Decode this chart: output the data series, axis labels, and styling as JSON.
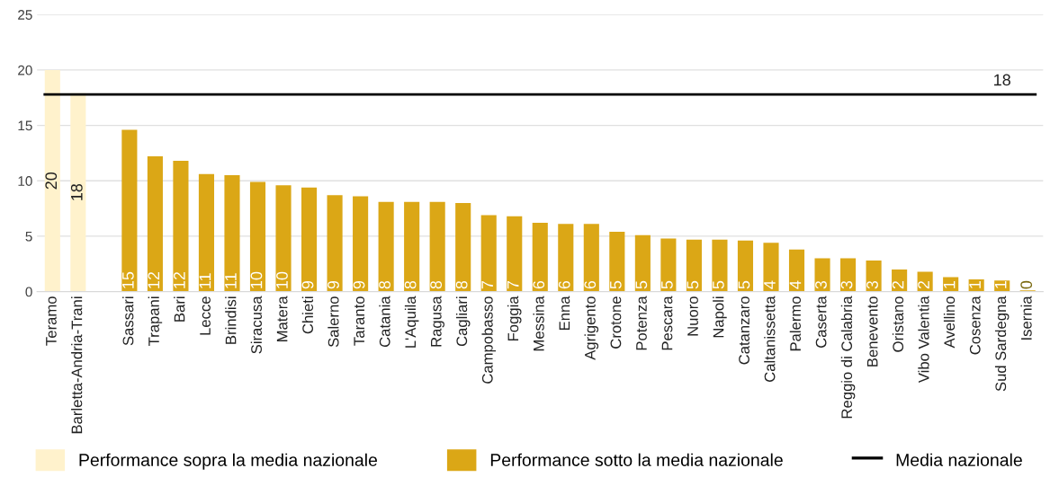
{
  "chart_data": {
    "type": "bar",
    "categories": [
      "Teramo",
      "Barletta-Andria-Trani",
      null,
      "Sassari",
      "Trapani",
      "Bari",
      "Lecce",
      "Brindisi",
      "Siracusa",
      "Matera",
      "Chieti",
      "Salerno",
      "Taranto",
      "Catania",
      "L'Aquila",
      "Ragusa",
      "Cagliari",
      "Campobasso",
      "Foggia",
      "Messina",
      "Enna",
      "Agrigento",
      "Crotone",
      "Potenza",
      "Pescara",
      "Nuoro",
      "Napoli",
      "Catanzaro",
      "Caltanissetta",
      "Palermo",
      "Caserta",
      "Reggio di Calabria",
      "Benevento",
      "Oristano",
      "Vibo Valentia",
      "Avellino",
      "Cosenza",
      "Sud Sardegna",
      "Isernia"
    ],
    "series": [
      {
        "name": "Performance sopra la media nazionale",
        "color": "#fff2cc",
        "values": [
          20.0,
          17.9,
          null,
          null,
          null,
          null,
          null,
          null,
          null,
          null,
          null,
          null,
          null,
          null,
          null,
          null,
          null,
          null,
          null,
          null,
          null,
          null,
          null,
          null,
          null,
          null,
          null,
          null,
          null,
          null,
          null,
          null,
          null,
          null,
          null,
          null,
          null,
          null,
          null
        ],
        "value_labels": [
          "20",
          "18",
          null,
          null,
          null,
          null,
          null,
          null,
          null,
          null,
          null,
          null,
          null,
          null,
          null,
          null,
          null,
          null,
          null,
          null,
          null,
          null,
          null,
          null,
          null,
          null,
          null,
          null,
          null,
          null,
          null,
          null,
          null,
          null,
          null,
          null,
          null,
          null,
          null
        ]
      },
      {
        "name": "Performance sotto la media nazionale",
        "color": "#dba716",
        "values": [
          null,
          null,
          null,
          14.6,
          12.2,
          11.8,
          10.6,
          10.5,
          9.9,
          9.6,
          9.4,
          8.7,
          8.6,
          8.1,
          8.1,
          8.1,
          8.0,
          6.9,
          6.8,
          6.2,
          6.1,
          6.1,
          5.4,
          5.1,
          4.8,
          4.7,
          4.7,
          4.6,
          4.4,
          3.8,
          3.0,
          3.0,
          2.8,
          2.0,
          1.8,
          1.3,
          1.1,
          1.0,
          0.1
        ],
        "value_labels": [
          null,
          null,
          null,
          "15",
          "12",
          "12",
          "11",
          "11",
          "10",
          "10",
          "9",
          "9",
          "9",
          "8",
          "8",
          "8",
          "8",
          "7",
          "7",
          "6",
          "6",
          "6",
          "5",
          "5",
          "5",
          "5",
          "5",
          "5",
          "4",
          "4",
          "3",
          "3",
          "3",
          "2",
          "2",
          "1",
          "1",
          "1",
          "0"
        ]
      }
    ],
    "ref_lines": [
      {
        "axis": "y",
        "value": 17.8,
        "label": "Media nazionale",
        "color": "#000000",
        "line_style": "solid"
      }
    ],
    "annotations": [
      {
        "text": "18",
        "x": "Sud Sardegna",
        "y": 17.8
      }
    ],
    "ylim": [
      0,
      25
    ],
    "yticks": [
      0,
      5,
      10,
      15,
      20,
      25
    ],
    "grid": "y",
    "legend": "bottom"
  }
}
